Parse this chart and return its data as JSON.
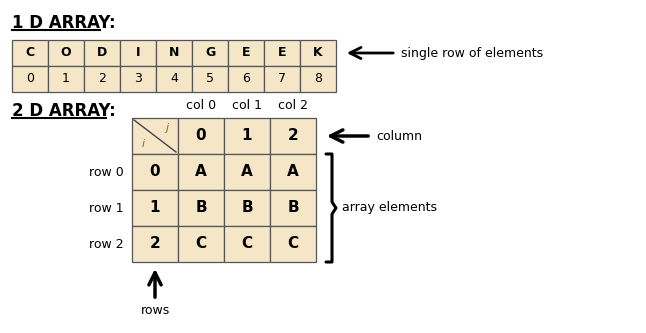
{
  "bg_color": "#ffffff",
  "cell_fill": "#f5e6c8",
  "cell_edge": "#555555",
  "title1": "1 D ARRAY:",
  "title2": "2 D ARRAY:",
  "arr1_letters": [
    "C",
    "O",
    "D",
    "I",
    "N",
    "G",
    "E",
    "E",
    "K"
  ],
  "arr1_indices": [
    "0",
    "1",
    "2",
    "3",
    "4",
    "5",
    "6",
    "7",
    "8"
  ],
  "arr2_header_vals": [
    "0",
    "1",
    "2"
  ],
  "arr2_rows": [
    [
      "0",
      "A",
      "A",
      "A"
    ],
    [
      "1",
      "B",
      "B",
      "B"
    ],
    [
      "2",
      "C",
      "C",
      "C"
    ]
  ],
  "row_labels": [
    "row 0",
    "row 1",
    "row 2"
  ],
  "col_labels": [
    "col 0",
    "col 1",
    "col 2"
  ],
  "label_column": "column",
  "label_single_row": "single row of elements",
  "label_array_elements": "array elements",
  "label_rows": "rows",
  "font_color": "#000000",
  "ij_color": "#8B6914"
}
